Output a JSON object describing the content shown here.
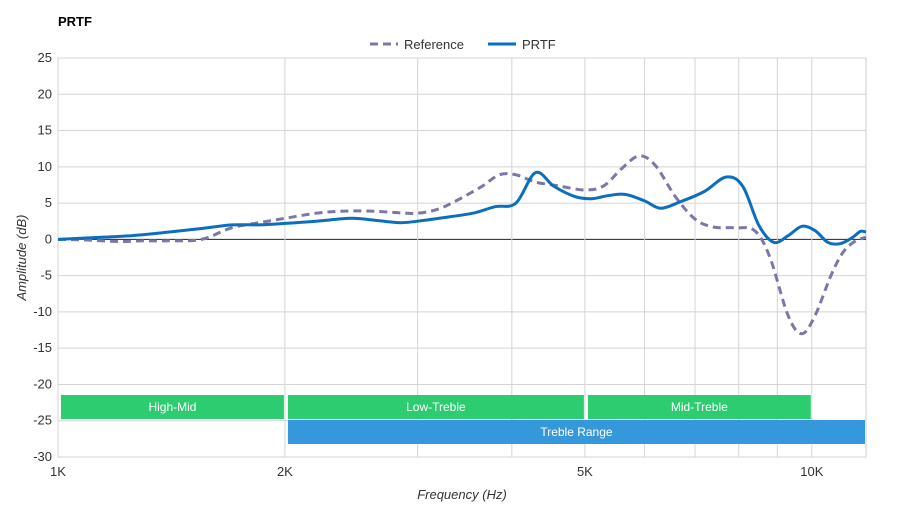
{
  "chart_data": {
    "type": "line",
    "title": "PRTF",
    "xlabel": "Frequency (Hz)",
    "ylabel": "Amplitude (dB)",
    "xscale": "log",
    "xlim": [
      1000,
      11800
    ],
    "ylim": [
      -30,
      25
    ],
    "yticks": [
      25,
      20,
      15,
      10,
      5,
      0,
      -5,
      -10,
      -15,
      -20,
      -25,
      -30
    ],
    "xtick_labels": [
      {
        "value": 1000,
        "label": "1K"
      },
      {
        "value": 2000,
        "label": "2K"
      },
      {
        "value": 5000,
        "label": "5K"
      },
      {
        "value": 10000,
        "label": "10K"
      }
    ],
    "minor_grid_x": [
      3000,
      4000,
      6000,
      7000,
      8000,
      9000
    ],
    "grid": true,
    "legend_position": "top-center",
    "series": [
      {
        "name": "Reference",
        "style": "dashed",
        "color": "#7b78a8",
        "points": [
          [
            1000,
            0
          ],
          [
            1100,
            -0.1
          ],
          [
            1200,
            -0.3
          ],
          [
            1300,
            -0.2
          ],
          [
            1400,
            -0.2
          ],
          [
            1550,
            0.0
          ],
          [
            1700,
            1.6
          ],
          [
            1850,
            2.3
          ],
          [
            2000,
            2.9
          ],
          [
            2200,
            3.6
          ],
          [
            2400,
            3.9
          ],
          [
            2600,
            3.9
          ],
          [
            2800,
            3.7
          ],
          [
            3000,
            3.6
          ],
          [
            3200,
            4.2
          ],
          [
            3400,
            5.5
          ],
          [
            3650,
            7.3
          ],
          [
            3850,
            8.9
          ],
          [
            4050,
            8.9
          ],
          [
            4300,
            7.9
          ],
          [
            4600,
            7.4
          ],
          [
            5000,
            6.8
          ],
          [
            5300,
            7.4
          ],
          [
            5600,
            9.8
          ],
          [
            5900,
            11.5
          ],
          [
            6200,
            10.2
          ],
          [
            6600,
            5.8
          ],
          [
            7000,
            2.8
          ],
          [
            7400,
            1.7
          ],
          [
            7900,
            1.6
          ],
          [
            8400,
            1.2
          ],
          [
            8800,
            -2.5
          ],
          [
            9300,
            -10.5
          ],
          [
            9700,
            -13.0
          ],
          [
            10100,
            -10.5
          ],
          [
            10600,
            -5.0
          ],
          [
            11000,
            -1.8
          ],
          [
            11400,
            -0.3
          ],
          [
            11800,
            0.3
          ]
        ]
      },
      {
        "name": "PRTF",
        "style": "solid",
        "color": "#0b6fbe",
        "points": [
          [
            1000,
            0
          ],
          [
            1100,
            0.2
          ],
          [
            1250,
            0.5
          ],
          [
            1400,
            1.0
          ],
          [
            1550,
            1.5
          ],
          [
            1700,
            2.0
          ],
          [
            1850,
            2.0
          ],
          [
            2000,
            2.2
          ],
          [
            2200,
            2.5
          ],
          [
            2450,
            2.9
          ],
          [
            2650,
            2.6
          ],
          [
            2850,
            2.3
          ],
          [
            3050,
            2.6
          ],
          [
            3300,
            3.1
          ],
          [
            3550,
            3.6
          ],
          [
            3800,
            4.5
          ],
          [
            4050,
            5.0
          ],
          [
            4300,
            9.2
          ],
          [
            4550,
            7.3
          ],
          [
            4850,
            5.9
          ],
          [
            5100,
            5.6
          ],
          [
            5350,
            6.0
          ],
          [
            5650,
            6.2
          ],
          [
            6000,
            5.3
          ],
          [
            6300,
            4.3
          ],
          [
            6700,
            5.2
          ],
          [
            7200,
            6.6
          ],
          [
            7700,
            8.6
          ],
          [
            8100,
            7.3
          ],
          [
            8500,
            2.0
          ],
          [
            8900,
            -0.4
          ],
          [
            9300,
            0.5
          ],
          [
            9700,
            1.8
          ],
          [
            10100,
            1.2
          ],
          [
            10500,
            -0.4
          ],
          [
            10900,
            -0.6
          ],
          [
            11300,
            0.2
          ],
          [
            11600,
            1.1
          ],
          [
            11800,
            1.0
          ]
        ]
      }
    ],
    "bands": [
      {
        "label": "High-Mid",
        "start": 1000,
        "end": 2000,
        "row": 0,
        "color": "#2ecc71"
      },
      {
        "label": "Low-Treble",
        "start": 2000,
        "end": 5000,
        "row": 0,
        "color": "#2ecc71"
      },
      {
        "label": "Mid-Treble",
        "start": 5000,
        "end": 10000,
        "row": 0,
        "color": "#2ecc71"
      },
      {
        "label": "Treble Range",
        "start": 2000,
        "end": 11800,
        "row": 1,
        "color": "#3498db"
      }
    ]
  }
}
